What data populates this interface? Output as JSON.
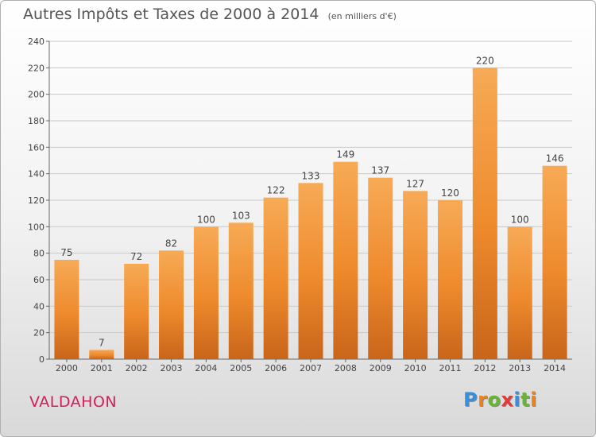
{
  "title": "Autres Impôts et Taxes de 2000 à 2014",
  "unit_note": "(en milliers d'€)",
  "town": "VALDAHON",
  "logo": {
    "letters": [
      "P",
      "r",
      "o",
      "x",
      "i",
      "t",
      "i"
    ],
    "colors": [
      "#3b8ed8",
      "#e8841f",
      "#6ab23a",
      "#e03a3a",
      "#3b8ed8",
      "#6ab23a",
      "#e8841f"
    ]
  },
  "colors": {
    "bar": "#ee8a2c",
    "bar_light": "#f7aa56",
    "bar_dark": "#c8651a",
    "grid": "#c8c8c8",
    "text": "#444444"
  },
  "chart_data": {
    "type": "bar",
    "title": "Autres Impôts et Taxes de 2000 à 2014",
    "subtitle": "(en milliers d'€)",
    "categories": [
      "2000",
      "2001",
      "2002",
      "2003",
      "2004",
      "2005",
      "2006",
      "2007",
      "2008",
      "2009",
      "2010",
      "2011",
      "2012",
      "2013",
      "2014"
    ],
    "values": [
      75,
      7,
      72,
      82,
      100,
      103,
      122,
      133,
      149,
      137,
      127,
      120,
      220,
      100,
      146
    ],
    "ylim": [
      0,
      240
    ],
    "yticks": [
      0,
      20,
      40,
      60,
      80,
      100,
      120,
      140,
      160,
      180,
      200,
      220,
      240
    ],
    "xlabel": "",
    "ylabel": "",
    "grid": true,
    "data_labels": true
  }
}
